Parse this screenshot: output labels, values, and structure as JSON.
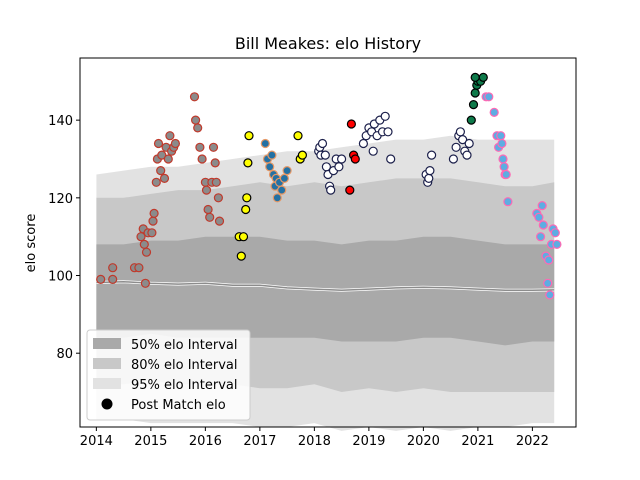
{
  "chart_data": {
    "type": "scatter",
    "title": "Bill Meakes: elo History",
    "xlabel": "",
    "ylabel": "elo score",
    "xlim": [
      2013.7,
      2022.8
    ],
    "ylim": [
      61,
      156
    ],
    "xticks": [
      2014,
      2015,
      2016,
      2017,
      2018,
      2019,
      2020,
      2021,
      2022
    ],
    "yticks": [
      80,
      100,
      120,
      140
    ],
    "grid": false,
    "legend_position": "lower-left",
    "legend": [
      {
        "label": "50% elo Interval",
        "color": "#a9a9a9"
      },
      {
        "label": "80% elo Interval",
        "color": "#c8c8c8"
      },
      {
        "label": "95% elo Interval",
        "color": "#e2e2e2"
      },
      {
        "label": "Post Match elo",
        "color": "#000000"
      }
    ],
    "bands": {
      "x": [
        2014.0,
        2014.5,
        2015.0,
        2015.5,
        2016.0,
        2016.5,
        2017.0,
        2017.5,
        2018.0,
        2018.5,
        2019.0,
        2019.5,
        2020.0,
        2020.5,
        2021.0,
        2021.5,
        2022.0,
        2022.4
      ],
      "median": [
        98.2,
        98.4,
        98.0,
        97.8,
        98.0,
        97.5,
        97.5,
        96.8,
        96.5,
        96.2,
        96.5,
        96.8,
        97.0,
        96.8,
        96.5,
        96.2,
        96.2,
        96.3
      ],
      "p50": [
        [
          84,
          108
        ],
        [
          84,
          108
        ],
        [
          85,
          109
        ],
        [
          84,
          109
        ],
        [
          84,
          110
        ],
        [
          84,
          110
        ],
        [
          84,
          110
        ],
        [
          84,
          109
        ],
        [
          84,
          109
        ],
        [
          83,
          108
        ],
        [
          83,
          109
        ],
        [
          83,
          109
        ],
        [
          84,
          110
        ],
        [
          84,
          110
        ],
        [
          83,
          109
        ],
        [
          82,
          108
        ],
        [
          83,
          108
        ],
        [
          83,
          108
        ]
      ],
      "p80": [
        [
          72,
          120
        ],
        [
          72,
          120
        ],
        [
          73,
          121
        ],
        [
          72,
          122
        ],
        [
          72,
          122
        ],
        [
          72,
          123
        ],
        [
          71,
          124
        ],
        [
          71,
          123
        ],
        [
          72,
          124
        ],
        [
          70,
          123
        ],
        [
          71,
          124
        ],
        [
          70,
          125
        ],
        [
          71,
          125
        ],
        [
          70,
          125
        ],
        [
          70,
          124
        ],
        [
          70,
          123
        ],
        [
          70,
          123
        ],
        [
          70,
          124
        ]
      ],
      "p95": [
        [
          63,
          126
        ],
        [
          63,
          127
        ],
        [
          62,
          128
        ],
        [
          62,
          128
        ],
        [
          62,
          129
        ],
        [
          62,
          130
        ],
        [
          61,
          131
        ],
        [
          61,
          132
        ],
        [
          62,
          132
        ],
        [
          60,
          133
        ],
        [
          61,
          134
        ],
        [
          60,
          135
        ],
        [
          61,
          135
        ],
        [
          60,
          136
        ],
        [
          61,
          135
        ],
        [
          61,
          135
        ],
        [
          62,
          135
        ],
        [
          62,
          135
        ]
      ]
    },
    "series": [
      {
        "fill": "#8b8b8b",
        "edge": "#c0392b",
        "points": [
          [
            2014.08,
            99
          ],
          [
            2014.3,
            102
          ],
          [
            2014.3,
            99
          ],
          [
            2014.7,
            102
          ],
          [
            2014.78,
            102
          ],
          [
            2014.82,
            110
          ],
          [
            2014.86,
            112
          ],
          [
            2014.88,
            108
          ],
          [
            2014.9,
            98
          ],
          [
            2014.92,
            106
          ],
          [
            2014.95,
            111
          ],
          [
            2015.02,
            111
          ],
          [
            2015.04,
            114
          ],
          [
            2015.06,
            116
          ],
          [
            2015.1,
            124
          ],
          [
            2015.12,
            130
          ],
          [
            2015.14,
            134
          ],
          [
            2015.18,
            127
          ],
          [
            2015.2,
            131
          ],
          [
            2015.25,
            125
          ],
          [
            2015.28,
            133
          ],
          [
            2015.32,
            130
          ],
          [
            2015.35,
            136
          ],
          [
            2015.38,
            132
          ],
          [
            2015.42,
            133
          ],
          [
            2015.45,
            134
          ],
          [
            2015.8,
            146
          ],
          [
            2015.82,
            140
          ],
          [
            2015.86,
            138
          ],
          [
            2015.9,
            133
          ],
          [
            2015.94,
            130
          ],
          [
            2016.0,
            124
          ],
          [
            2016.02,
            122
          ],
          [
            2016.05,
            117
          ],
          [
            2016.08,
            115
          ],
          [
            2016.12,
            124
          ],
          [
            2016.15,
            133
          ],
          [
            2016.18,
            129
          ],
          [
            2016.2,
            124
          ],
          [
            2016.24,
            120
          ],
          [
            2016.26,
            114
          ]
        ]
      },
      {
        "fill": "#ffff00",
        "edge": "#000000",
        "points": [
          [
            2016.62,
            110
          ],
          [
            2016.66,
            105
          ],
          [
            2016.7,
            110
          ],
          [
            2016.74,
            117
          ],
          [
            2016.76,
            120
          ],
          [
            2016.78,
            129
          ],
          [
            2016.8,
            136
          ],
          [
            2017.7,
            136
          ],
          [
            2017.74,
            130
          ],
          [
            2017.78,
            131
          ]
        ]
      },
      {
        "fill": "#2471a3",
        "edge": "#e59866",
        "points": [
          [
            2017.1,
            134
          ],
          [
            2017.14,
            130
          ],
          [
            2017.18,
            128
          ],
          [
            2017.22,
            131
          ],
          [
            2017.25,
            126
          ],
          [
            2017.28,
            123
          ],
          [
            2017.3,
            125
          ],
          [
            2017.32,
            120
          ],
          [
            2017.36,
            124
          ],
          [
            2017.4,
            122
          ],
          [
            2017.45,
            125
          ],
          [
            2017.5,
            127
          ]
        ]
      },
      {
        "fill": "#ffffff",
        "edge": "#1b1f4a",
        "points": [
          [
            2018.08,
            132
          ],
          [
            2018.1,
            133
          ],
          [
            2018.12,
            131
          ],
          [
            2018.15,
            134
          ],
          [
            2018.2,
            131
          ],
          [
            2018.22,
            128
          ],
          [
            2018.25,
            126
          ],
          [
            2018.28,
            123
          ],
          [
            2018.3,
            122
          ],
          [
            2018.35,
            127
          ],
          [
            2018.4,
            130
          ],
          [
            2018.45,
            128
          ],
          [
            2018.5,
            130
          ],
          [
            2018.9,
            134
          ],
          [
            2018.95,
            136
          ],
          [
            2019.0,
            138
          ],
          [
            2019.05,
            137
          ],
          [
            2019.08,
            132
          ],
          [
            2019.1,
            139
          ],
          [
            2019.15,
            136
          ],
          [
            2019.2,
            140
          ],
          [
            2019.25,
            137
          ],
          [
            2019.3,
            141
          ],
          [
            2019.35,
            137
          ],
          [
            2019.4,
            130
          ],
          [
            2020.05,
            126
          ],
          [
            2020.08,
            124
          ],
          [
            2020.1,
            125
          ],
          [
            2020.12,
            127
          ],
          [
            2020.15,
            131
          ],
          [
            2020.55,
            130
          ],
          [
            2020.6,
            133
          ],
          [
            2020.65,
            136
          ],
          [
            2020.68,
            137
          ],
          [
            2020.72,
            135
          ],
          [
            2020.76,
            132
          ],
          [
            2020.8,
            131
          ],
          [
            2020.84,
            134
          ]
        ]
      },
      {
        "fill": "#ff0000",
        "edge": "#000000",
        "points": [
          [
            2018.65,
            122
          ],
          [
            2018.68,
            139
          ],
          [
            2018.72,
            131
          ],
          [
            2018.75,
            130
          ]
        ]
      },
      {
        "fill": "#0e7a4a",
        "edge": "#000000",
        "points": [
          [
            2020.88,
            140
          ],
          [
            2020.92,
            144
          ],
          [
            2020.95,
            147
          ],
          [
            2020.98,
            149
          ],
          [
            2021.0,
            150
          ],
          [
            2021.05,
            150
          ],
          [
            2021.1,
            151
          ],
          [
            2020.95,
            151
          ]
        ]
      },
      {
        "fill": "#5dade2",
        "edge": "#ff69b4",
        "points": [
          [
            2021.15,
            146
          ],
          [
            2021.2,
            146
          ],
          [
            2021.3,
            142
          ],
          [
            2021.35,
            136
          ],
          [
            2021.38,
            133
          ],
          [
            2021.42,
            136
          ],
          [
            2021.44,
            134
          ],
          [
            2021.46,
            130
          ],
          [
            2021.48,
            128
          ],
          [
            2021.5,
            126
          ],
          [
            2021.52,
            126
          ],
          [
            2021.55,
            119
          ],
          [
            2022.08,
            116
          ],
          [
            2022.12,
            115
          ],
          [
            2022.15,
            110
          ],
          [
            2022.18,
            118
          ],
          [
            2022.2,
            113
          ],
          [
            2022.25,
            105
          ],
          [
            2022.28,
            98
          ],
          [
            2022.3,
            104
          ],
          [
            2022.32,
            95
          ],
          [
            2022.35,
            108
          ],
          [
            2022.38,
            112
          ],
          [
            2022.42,
            111
          ],
          [
            2022.45,
            108
          ]
        ]
      }
    ]
  }
}
